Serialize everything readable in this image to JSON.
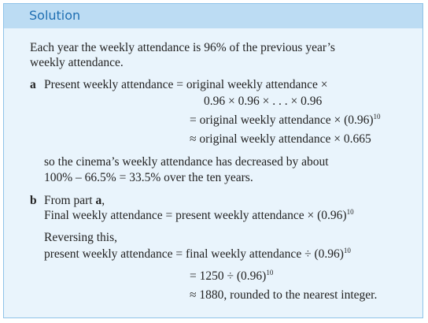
{
  "header": {
    "title": "Solution"
  },
  "intro": [
    "Each year the weekly attendance is 96% of the previous year’s",
    "weekly attendance."
  ],
  "part_a": {
    "label": "a",
    "lines": [
      {
        "text": "Present weekly attendance = original weekly attendance ×"
      },
      {
        "text": "0.96 × 0.96 × . . . × 0.96"
      },
      {
        "text": "= original weekly attendance × (0.96)",
        "sup": "10"
      },
      {
        "text": "≈ original weekly attendance × 0.665"
      }
    ],
    "conclusion": [
      "so the cinema’s weekly attendance has decreased by about",
      "100% – 66.5% = 33.5% over the ten years."
    ]
  },
  "part_b": {
    "label": "b",
    "from": {
      "text": "From part ",
      "ref": "a",
      "end": ","
    },
    "lines": [
      {
        "text": "Final weekly attendance = present weekly attendance × (0.96)",
        "sup": "10"
      },
      {
        "text": "Reversing this,"
      },
      {
        "text": "present weekly attendance = final weekly attendance ÷ (0.96)",
        "sup": "10"
      },
      {
        "text": "= 1250 ÷ (0.96)",
        "sup": "10"
      },
      {
        "text": "≈ 1880, rounded to the nearest integer."
      }
    ]
  }
}
